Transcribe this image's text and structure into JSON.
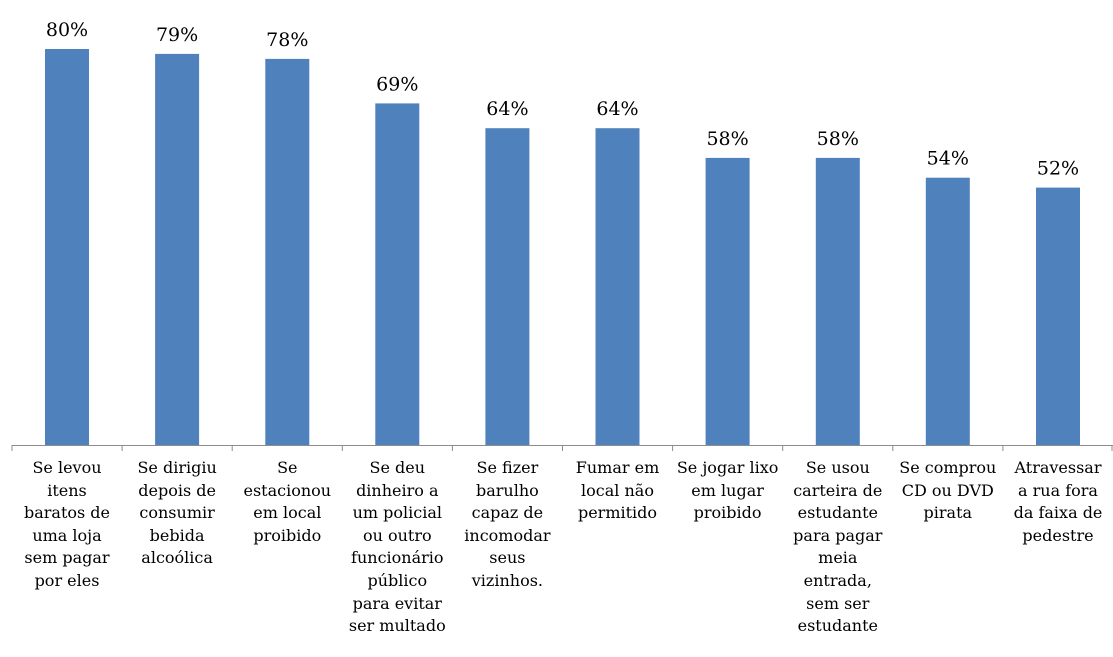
{
  "chart_data": {
    "type": "bar",
    "title": "",
    "xlabel": "",
    "ylabel": "",
    "ylim": [
      0,
      80
    ],
    "grid": false,
    "legend": "none",
    "value_suffix": "%",
    "bar_color": "#4f81bd",
    "axis_color": "#8c8c8c",
    "categories": [
      "Se levou\nitens\nbaratos de\numa loja\nsem pagar\npor eles",
      "Se dirigiu\ndepois de\nconsumir\nbebida\nalcoólica",
      "Se\nestacionou\nem local\nproibido",
      "Se deu\ndinheiro a\num policial\nou outro\nfuncionário\npúblico\npara evitar\nser multado",
      "Se fizer\nbarulho\ncapaz de\nincomodar\nseus\nvizinhos.",
      "Fumar em\nlocal não\npermitido",
      "Se jogar lixo\nem lugar\nproibido",
      "Se usou\ncarteira de\nestudante\npara pagar\nmeia\nentrada,\nsem ser\nestudante",
      "Se comprou\nCD ou DVD\npirata",
      "Atravessar\na rua fora\nda faixa de\npedestre"
    ],
    "values": [
      80,
      79,
      78,
      69,
      64,
      64,
      58,
      58,
      54,
      52
    ]
  }
}
